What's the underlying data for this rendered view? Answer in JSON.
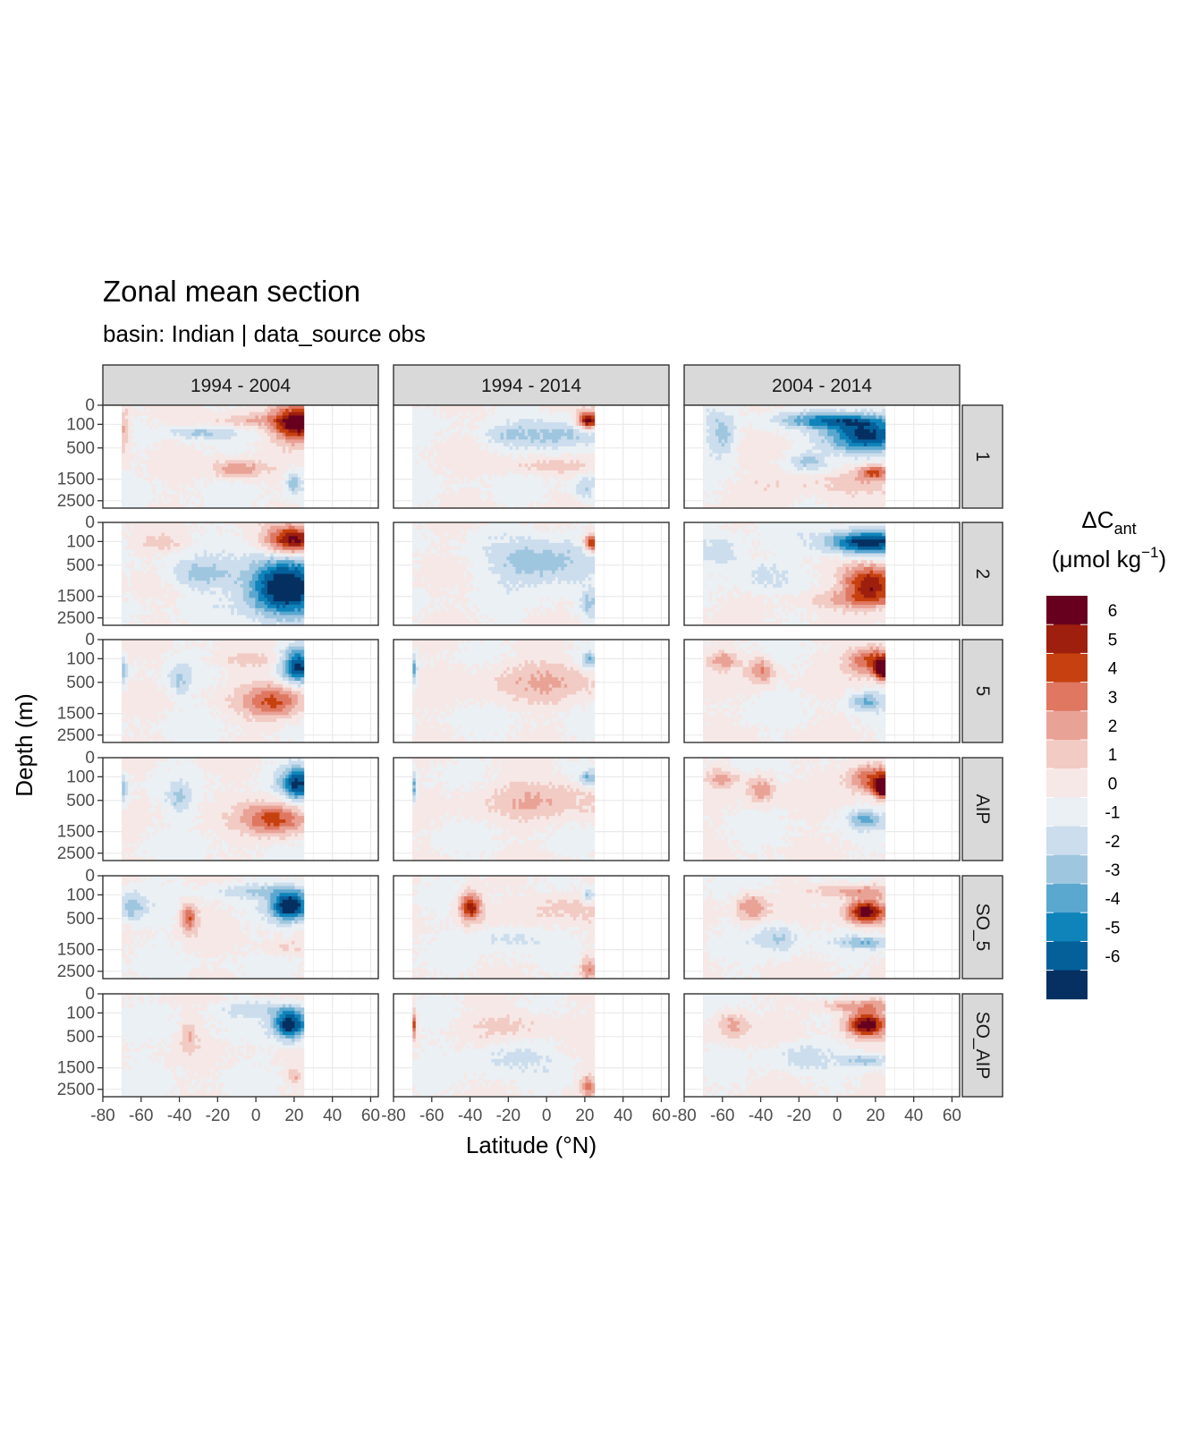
{
  "title": "Zonal mean section",
  "subtitle": "basin: Indian | data_source obs",
  "chart_data": {
    "type": "heatmap",
    "facet_cols": [
      "1994 - 2004",
      "1994 - 2014",
      "2004 - 2014"
    ],
    "facet_rows": [
      "1",
      "2",
      "5",
      "AIP",
      "SO_5",
      "SO_AIP"
    ],
    "xlabel": "Latitude (°N)",
    "ylabel": "Depth (m)",
    "x_ticks": [
      "-80",
      "-60",
      "-40",
      "-20",
      "0",
      "20",
      "40",
      "60"
    ],
    "xlim": [
      -80,
      64
    ],
    "y_ticks": [
      "0",
      "100",
      "500",
      "1500",
      "2500"
    ],
    "y_tick_values": [
      0,
      100,
      500,
      1500,
      2500
    ],
    "ylim": [
      0,
      2900
    ],
    "data_lat_range": [
      -70,
      25
    ],
    "grid": true,
    "legend": {
      "title_main": "ΔC",
      "title_sub": "ant",
      "title_unit_pre": "(μmol kg",
      "title_unit_sup": "−1",
      "title_unit_post": ")",
      "labels": [
        "6",
        "5",
        "4",
        "3",
        "2",
        "1",
        "0",
        "-1",
        "-2",
        "-3",
        "-4",
        "-5",
        "-6"
      ],
      "colors": [
        "#67001f",
        "#9e1f0e",
        "#c6410f",
        "#df7761",
        "#e9a296",
        "#f2cbc4",
        "#f6e8e6",
        "#eaf0f4",
        "#ccdded",
        "#9fc6df",
        "#5aa7cf",
        "#0f84bb",
        "#05609a",
        "#053061"
      ],
      "position": "right"
    }
  }
}
